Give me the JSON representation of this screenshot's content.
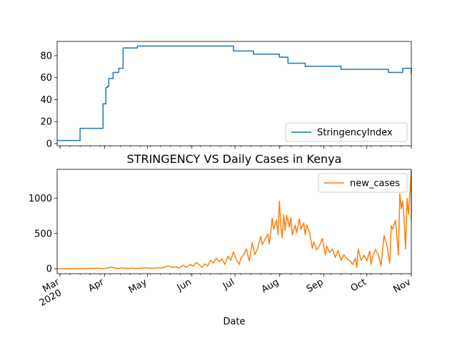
{
  "chart_data": [
    {
      "type": "line",
      "title": "",
      "xlabel": "",
      "ylabel": "",
      "ylim": [
        -2,
        93
      ],
      "yticks": [
        0,
        20,
        40,
        60,
        80
      ],
      "x_range": [
        "2020-02-28",
        "2020-11-01"
      ],
      "legend": {
        "position": "lower-right"
      },
      "series": [
        {
          "name": "StringencyIndex",
          "color": "#1f77b4",
          "step_points": [
            [
              "2020-02-28",
              2.78
            ],
            [
              "2020-03-15",
              13.89
            ],
            [
              "2020-03-31",
              36.11
            ],
            [
              "2020-04-01",
              36.11
            ],
            [
              "2020-04-02",
              50.93
            ],
            [
              "2020-04-03",
              51.85
            ],
            [
              "2020-04-04",
              59.26
            ],
            [
              "2020-04-07",
              64.81
            ],
            [
              "2020-04-11",
              68.52
            ],
            [
              "2020-04-14",
              87.04
            ],
            [
              "2020-04-24",
              88.89
            ],
            [
              "2020-06-30",
              84.26
            ],
            [
              "2020-07-14",
              81.48
            ],
            [
              "2020-08-01",
              78.7
            ],
            [
              "2020-08-07",
              73.15
            ],
            [
              "2020-08-19",
              70.37
            ],
            [
              "2020-09-13",
              67.59
            ],
            [
              "2020-10-16",
              64.81
            ],
            [
              "2020-10-26",
              68.52
            ],
            [
              "2020-11-01",
              62.96
            ]
          ]
        }
      ]
    },
    {
      "type": "line",
      "title": "STRINGENCY VS Daily Cases in Kenya",
      "xlabel": "Date",
      "ylabel": "",
      "ylim": [
        -70,
        1410
      ],
      "yticks": [
        0,
        500,
        1000
      ],
      "x_range": [
        "2020-02-28",
        "2020-11-01"
      ],
      "xticks": [
        {
          "date": "2020-03-01",
          "label": "Mar",
          "sublabel": "2020"
        },
        {
          "date": "2020-04-01",
          "label": "Apr"
        },
        {
          "date": "2020-05-01",
          "label": "May"
        },
        {
          "date": "2020-06-01",
          "label": "Jun"
        },
        {
          "date": "2020-07-01",
          "label": "Jul"
        },
        {
          "date": "2020-08-01",
          "label": "Aug"
        },
        {
          "date": "2020-09-01",
          "label": "Sep"
        },
        {
          "date": "2020-10-01",
          "label": "Oct"
        },
        {
          "date": "2020-11-01",
          "label": "Nov"
        }
      ],
      "legend": {
        "position": "upper-right"
      },
      "series": [
        {
          "name": "new_cases",
          "color": "#ff7f0e",
          "points": [
            [
              "2020-02-28",
              0
            ],
            [
              "2020-03-13",
              1
            ],
            [
              "2020-03-20",
              3
            ],
            [
              "2020-03-25",
              5
            ],
            [
              "2020-03-28",
              8
            ],
            [
              "2020-03-31",
              2
            ],
            [
              "2020-04-04",
              15
            ],
            [
              "2020-04-06",
              25
            ],
            [
              "2020-04-08",
              10
            ],
            [
              "2020-04-11",
              5
            ],
            [
              "2020-04-14",
              12
            ],
            [
              "2020-04-17",
              3
            ],
            [
              "2020-04-20",
              10
            ],
            [
              "2020-04-23",
              5
            ],
            [
              "2020-04-26",
              8
            ],
            [
              "2020-04-30",
              12
            ],
            [
              "2020-05-02",
              10
            ],
            [
              "2020-05-05",
              5
            ],
            [
              "2020-05-08",
              15
            ],
            [
              "2020-05-11",
              10
            ],
            [
              "2020-05-14",
              30
            ],
            [
              "2020-05-16",
              40
            ],
            [
              "2020-05-18",
              20
            ],
            [
              "2020-05-21",
              25
            ],
            [
              "2020-05-23",
              10
            ],
            [
              "2020-05-26",
              50
            ],
            [
              "2020-05-28",
              20
            ],
            [
              "2020-05-31",
              60
            ],
            [
              "2020-06-02",
              40
            ],
            [
              "2020-06-04",
              90
            ],
            [
              "2020-06-06",
              60
            ],
            [
              "2020-06-08",
              20
            ],
            [
              "2020-06-10",
              70
            ],
            [
              "2020-06-12",
              40
            ],
            [
              "2020-06-14",
              120
            ],
            [
              "2020-06-16",
              80
            ],
            [
              "2020-06-18",
              150
            ],
            [
              "2020-06-20",
              100
            ],
            [
              "2020-06-22",
              140
            ],
            [
              "2020-06-24",
              60
            ],
            [
              "2020-06-26",
              180
            ],
            [
              "2020-06-28",
              120
            ],
            [
              "2020-06-30",
              240
            ],
            [
              "2020-07-02",
              130
            ],
            [
              "2020-07-04",
              60
            ],
            [
              "2020-07-05",
              140
            ],
            [
              "2020-07-07",
              200
            ],
            [
              "2020-07-09",
              280
            ],
            [
              "2020-07-11",
              110
            ],
            [
              "2020-07-13",
              370
            ],
            [
              "2020-07-15",
              200
            ],
            [
              "2020-07-17",
              300
            ],
            [
              "2020-07-19",
              460
            ],
            [
              "2020-07-20",
              340
            ],
            [
              "2020-07-22",
              420
            ],
            [
              "2020-07-24",
              490
            ],
            [
              "2020-07-25",
              350
            ],
            [
              "2020-07-27",
              720
            ],
            [
              "2020-07-28",
              560
            ],
            [
              "2020-07-30",
              690
            ],
            [
              "2020-07-31",
              480
            ],
            [
              "2020-08-01",
              960
            ],
            [
              "2020-08-02",
              610
            ],
            [
              "2020-08-03",
              440
            ],
            [
              "2020-08-04",
              770
            ],
            [
              "2020-08-05",
              540
            ],
            [
              "2020-08-06",
              760
            ],
            [
              "2020-08-07",
              680
            ],
            [
              "2020-08-08",
              590
            ],
            [
              "2020-08-09",
              730
            ],
            [
              "2020-08-10",
              480
            ],
            [
              "2020-08-12",
              620
            ],
            [
              "2020-08-13",
              510
            ],
            [
              "2020-08-15",
              710
            ],
            [
              "2020-08-16",
              560
            ],
            [
              "2020-08-18",
              650
            ],
            [
              "2020-08-19",
              480
            ],
            [
              "2020-08-20",
              620
            ],
            [
              "2020-08-22",
              520
            ],
            [
              "2020-08-24",
              290
            ],
            [
              "2020-08-25",
              380
            ],
            [
              "2020-08-27",
              270
            ],
            [
              "2020-08-29",
              330
            ],
            [
              "2020-08-31",
              430
            ],
            [
              "2020-09-02",
              200
            ],
            [
              "2020-09-03",
              320
            ],
            [
              "2020-09-05",
              230
            ],
            [
              "2020-09-07",
              280
            ],
            [
              "2020-09-09",
              160
            ],
            [
              "2020-09-11",
              260
            ],
            [
              "2020-09-13",
              120
            ],
            [
              "2020-09-15",
              200
            ],
            [
              "2020-09-17",
              140
            ],
            [
              "2020-09-19",
              120
            ],
            [
              "2020-09-21",
              60
            ],
            [
              "2020-09-23",
              150
            ],
            [
              "2020-09-24",
              20
            ],
            [
              "2020-09-25",
              280
            ],
            [
              "2020-09-27",
              120
            ],
            [
              "2020-09-29",
              190
            ],
            [
              "2020-10-01",
              110
            ],
            [
              "2020-10-03",
              250
            ],
            [
              "2020-10-04",
              60
            ],
            [
              "2020-10-05",
              180
            ],
            [
              "2020-10-07",
              270
            ],
            [
              "2020-10-09",
              200
            ],
            [
              "2020-10-11",
              40
            ],
            [
              "2020-10-12",
              280
            ],
            [
              "2020-10-13",
              470
            ],
            [
              "2020-10-15",
              330
            ],
            [
              "2020-10-17",
              80
            ],
            [
              "2020-10-18",
              610
            ],
            [
              "2020-10-19",
              560
            ],
            [
              "2020-10-21",
              690
            ],
            [
              "2020-10-23",
              200
            ],
            [
              "2020-10-24",
              1070
            ],
            [
              "2020-10-25",
              850
            ],
            [
              "2020-10-26",
              960
            ],
            [
              "2020-10-27",
              700
            ],
            [
              "2020-10-28",
              280
            ],
            [
              "2020-10-29",
              1000
            ],
            [
              "2020-10-30",
              770
            ],
            [
              "2020-10-31",
              1070
            ],
            [
              "2020-11-01",
              1390
            ],
            [
              "2020-11-02",
              690
            ]
          ]
        }
      ]
    }
  ]
}
